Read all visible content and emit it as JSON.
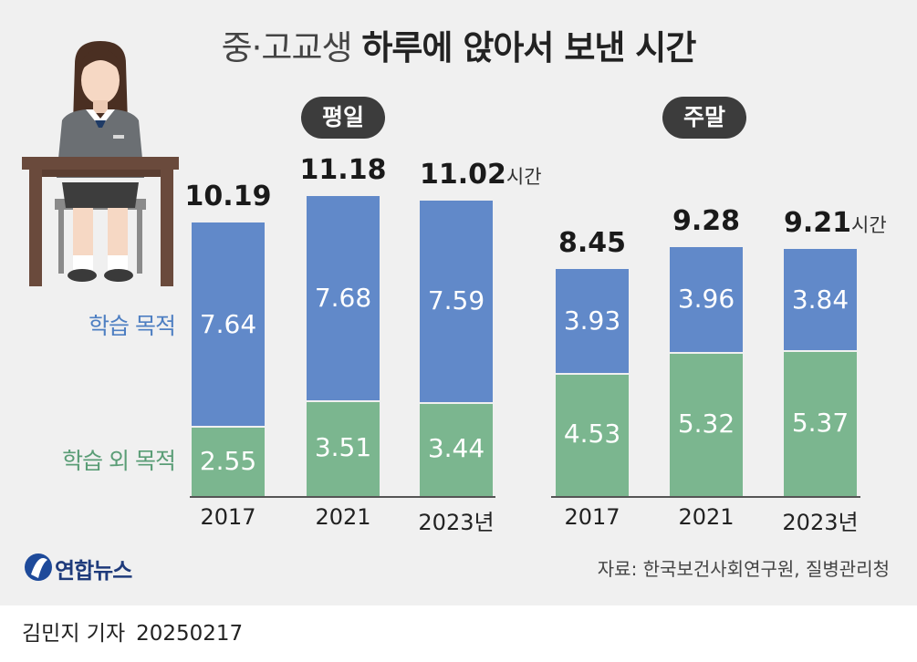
{
  "title_light": "중·고교생",
  "title_bold": "하루에 앉아서 보낸 시간",
  "legend": {
    "study": "학습 목적",
    "nonstudy": "학습 외 목적"
  },
  "unit": "시간",
  "year_suffix": "년",
  "source": "자료: 한국보건사회연구원, 질병관리청",
  "logo_text": "연합뉴스",
  "reporter": "김민지 기자",
  "date": "20250217",
  "colors": {
    "study": "#6189c9",
    "nonstudy": "#7bb68f",
    "pill": "#3c3c3c",
    "panel": "#f0f0f0"
  },
  "chart_data": [
    {
      "type": "bar",
      "stacked": true,
      "title": "평일",
      "categories": [
        "2017",
        "2021",
        "2023"
      ],
      "totals": [
        "10.19",
        "11.18",
        "11.02"
      ],
      "series": [
        {
          "name": "학습 목적",
          "values": [
            7.64,
            7.68,
            7.59
          ],
          "labels": [
            "7.64",
            "7.68",
            "7.59"
          ]
        },
        {
          "name": "학습 외 목적",
          "values": [
            2.55,
            3.51,
            3.44
          ],
          "labels": [
            "2.55",
            "3.51",
            "3.44"
          ]
        }
      ]
    },
    {
      "type": "bar",
      "stacked": true,
      "title": "주말",
      "categories": [
        "2017",
        "2021",
        "2023"
      ],
      "totals": [
        "8.45",
        "9.28",
        "9.21"
      ],
      "series": [
        {
          "name": "학습 목적",
          "values": [
            3.93,
            3.96,
            3.84
          ],
          "labels": [
            "3.93",
            "3.96",
            "3.84"
          ]
        },
        {
          "name": "학습 외 목적",
          "values": [
            4.53,
            5.32,
            5.37
          ],
          "labels": [
            "4.53",
            "5.32",
            "5.37"
          ]
        }
      ]
    }
  ]
}
